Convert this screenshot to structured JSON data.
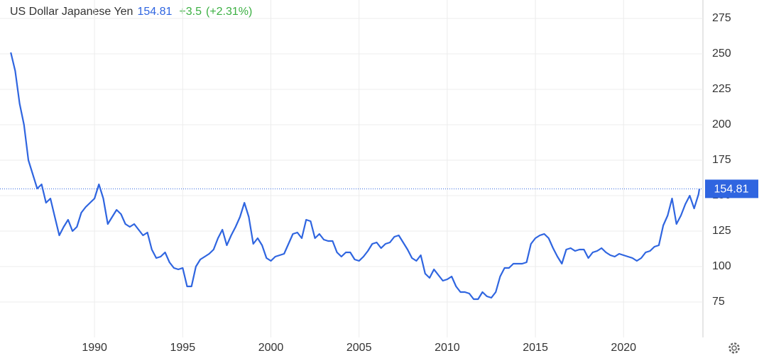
{
  "chart_data": {
    "type": "line",
    "title": "US Dollar Japanese Yen",
    "price": "154.81",
    "change": "+3.5",
    "change_pct": "(+2.31%)",
    "last_value": 154.81,
    "x": [
      1985.25,
      1985.5,
      1985.75,
      1986,
      1986.25,
      1986.5,
      1986.75,
      1987,
      1987.25,
      1987.5,
      1987.75,
      1988,
      1988.25,
      1988.5,
      1988.75,
      1989,
      1989.25,
      1989.5,
      1989.75,
      1990,
      1990.25,
      1990.5,
      1990.75,
      1991,
      1991.25,
      1991.5,
      1991.75,
      1992,
      1992.25,
      1992.5,
      1992.75,
      1993,
      1993.25,
      1993.5,
      1993.75,
      1994,
      1994.25,
      1994.5,
      1994.75,
      1995,
      1995.25,
      1995.5,
      1995.75,
      1996,
      1996.25,
      1996.5,
      1996.75,
      1997,
      1997.25,
      1997.5,
      1997.75,
      1998,
      1998.25,
      1998.5,
      1998.75,
      1999,
      1999.25,
      1999.5,
      1999.75,
      2000,
      2000.25,
      2000.5,
      2000.75,
      2001,
      2001.25,
      2001.5,
      2001.75,
      2002,
      2002.25,
      2002.5,
      2002.75,
      2003,
      2003.25,
      2003.5,
      2003.75,
      2004,
      2004.25,
      2004.5,
      2004.75,
      2005,
      2005.25,
      2005.5,
      2005.75,
      2006,
      2006.25,
      2006.5,
      2006.75,
      2007,
      2007.25,
      2007.5,
      2007.75,
      2008,
      2008.25,
      2008.5,
      2008.75,
      2009,
      2009.25,
      2009.5,
      2009.75,
      2010,
      2010.25,
      2010.5,
      2010.75,
      2011,
      2011.25,
      2011.5,
      2011.75,
      2012,
      2012.25,
      2012.5,
      2012.75,
      2013,
      2013.25,
      2013.5,
      2013.75,
      2014,
      2014.25,
      2014.5,
      2014.75,
      2015,
      2015.25,
      2015.5,
      2015.75,
      2016,
      2016.25,
      2016.5,
      2016.75,
      2017,
      2017.25,
      2017.5,
      2017.75,
      2018,
      2018.25,
      2018.5,
      2018.75,
      2019,
      2019.25,
      2019.5,
      2019.75,
      2020,
      2020.25,
      2020.5,
      2020.75,
      2021,
      2021.25,
      2021.5,
      2021.75,
      2022,
      2022.25,
      2022.5,
      2022.75,
      2023,
      2023.25,
      2023.5,
      2023.75,
      2024,
      2024.25,
      2024.3
    ],
    "series": [
      {
        "name": "USDJPY",
        "color": "#2f65e0",
        "values": [
          251,
          238,
          215,
          200,
          175,
          165,
          155,
          158,
          145,
          148,
          135,
          122,
          128,
          133,
          125,
          128,
          138,
          142,
          145,
          148,
          158,
          148,
          130,
          135,
          140,
          137,
          130,
          128,
          130,
          126,
          122,
          124,
          112,
          106,
          107,
          110,
          103,
          99,
          98,
          99,
          86,
          86,
          100,
          105,
          107,
          109,
          112,
          120,
          126,
          115,
          122,
          128,
          135,
          145,
          135,
          116,
          120,
          115,
          106,
          104,
          107,
          108,
          109,
          116,
          123,
          124,
          120,
          133,
          132,
          120,
          123,
          119,
          118,
          118,
          110,
          107,
          110,
          110,
          105,
          104,
          107,
          111,
          116,
          117,
          113,
          116,
          117,
          121,
          122,
          117,
          112,
          106,
          104,
          108,
          95,
          92,
          98,
          94,
          90,
          91,
          93,
          86,
          82,
          82,
          81,
          77,
          77,
          82,
          79,
          78,
          82,
          93,
          99,
          99,
          102,
          102,
          102,
          103,
          116,
          120,
          122,
          123,
          120,
          113,
          107,
          102,
          112,
          113,
          111,
          112,
          112,
          106,
          110,
          111,
          113,
          110,
          108,
          107,
          109,
          108,
          107,
          106,
          104,
          106,
          110,
          111,
          114,
          115,
          129,
          136,
          148,
          130,
          136,
          144,
          150,
          141,
          151,
          154.81
        ]
      }
    ],
    "xlim": [
      1984.64,
      2024.5
    ],
    "ylim": [
      50,
      288
    ],
    "xticks": [
      1990,
      1995,
      2000,
      2005,
      2010,
      2015,
      2020
    ],
    "yticks": [
      75,
      100,
      125,
      150,
      175,
      200,
      225,
      250,
      275
    ],
    "grid": true
  }
}
